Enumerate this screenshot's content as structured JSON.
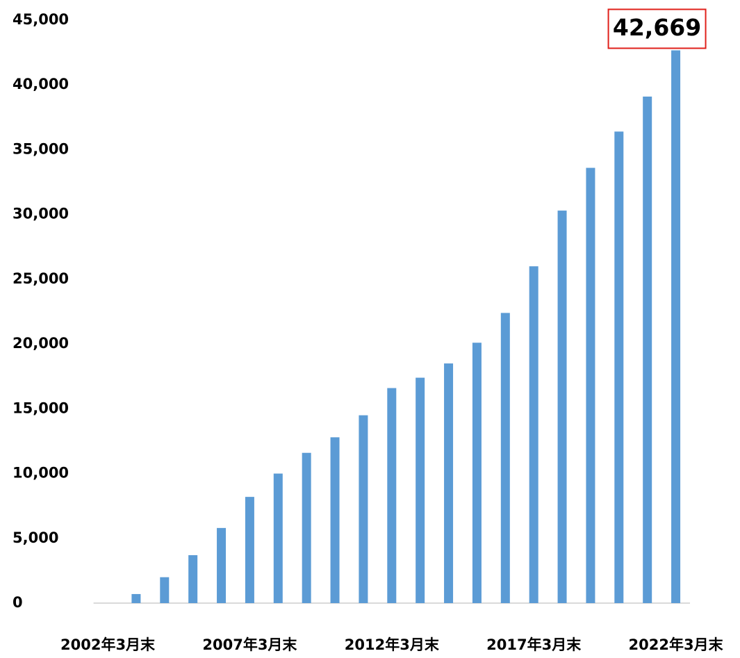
{
  "chart_data": {
    "type": "bar",
    "categories": [
      "2002年3月末",
      null,
      null,
      null,
      null,
      "2007年3月末",
      null,
      null,
      null,
      null,
      "2012年3月末",
      null,
      null,
      null,
      null,
      "2017年3月末",
      null,
      null,
      null,
      null,
      "2022年3月末"
    ],
    "values": [
      null,
      700,
      2000,
      3700,
      5800,
      8200,
      10000,
      11600,
      12800,
      14500,
      16600,
      17400,
      18500,
      20100,
      22400,
      26000,
      30300,
      33600,
      36400,
      39100,
      42669
    ],
    "value_labels": [
      null,
      null,
      null,
      null,
      null,
      null,
      null,
      null,
      null,
      null,
      null,
      null,
      null,
      null,
      null,
      null,
      null,
      null,
      null,
      null,
      "42,669"
    ],
    "color": "#5b9bd5",
    "ylim": [
      0,
      45000
    ],
    "yticks": [
      0,
      {
        "value": 5000,
        "label": "5,000"
      },
      {
        "value": 10000,
        "label": "10,000"
      },
      {
        "value": 15000,
        "label": "15,000"
      },
      {
        "value": 20000,
        "label": "20,000"
      },
      {
        "value": 25000,
        "label": "25,000"
      },
      {
        "value": 30000,
        "label": "30,000"
      },
      {
        "value": 35000,
        "label": "35,000"
      },
      {
        "value": 40000,
        "label": "40,000"
      },
      {
        "value": 45000,
        "label": "45,000"
      }
    ],
    "grid": false
  }
}
